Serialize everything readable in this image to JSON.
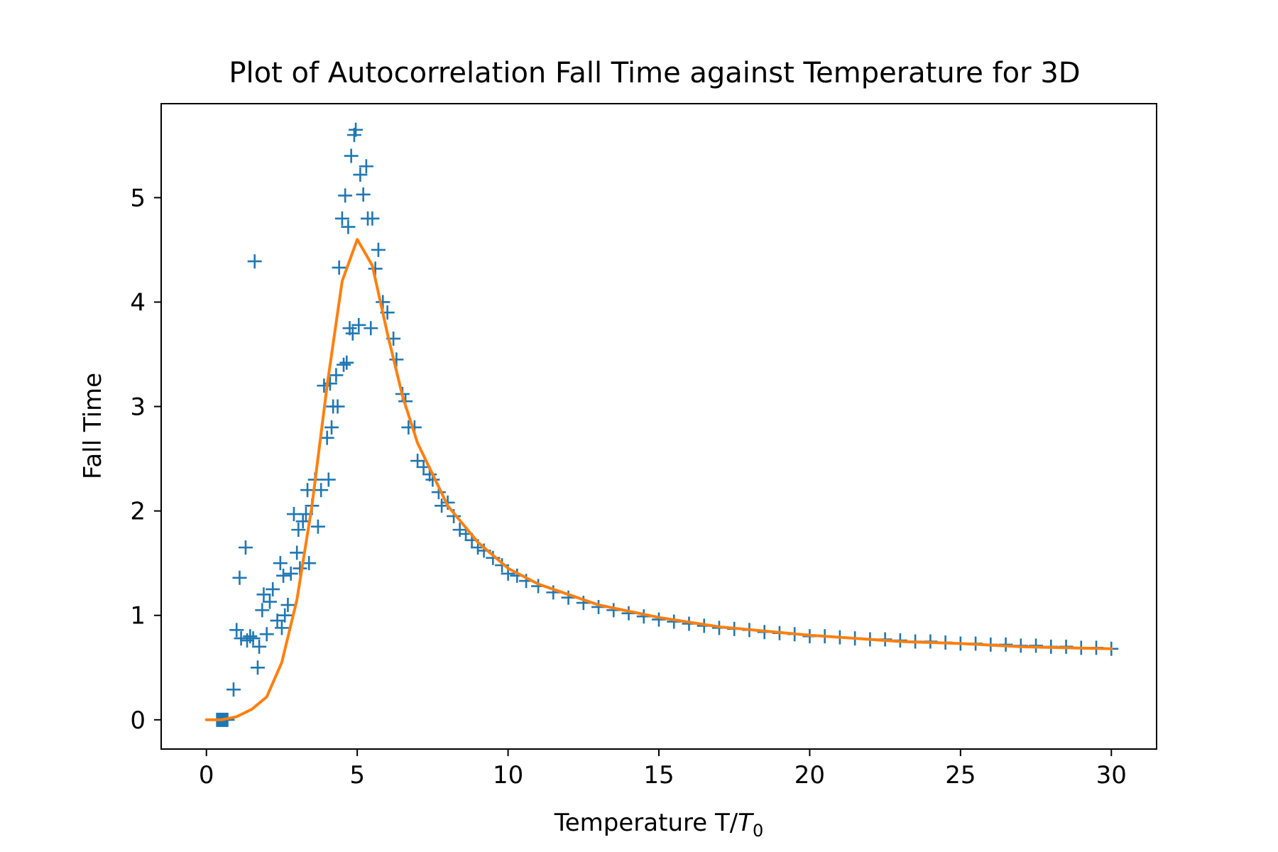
{
  "chart_data": {
    "type": "scatter",
    "title": "Plot of Autocorrelation Fall Time against Temperature for 3D",
    "xlabel": "Temperature T/",
    "xlabel_math": "T",
    "xlabel_math_sub": "0",
    "ylabel": "Fall Time",
    "xlim": [
      -1.5,
      31.5
    ],
    "ylim": [
      -0.28,
      5.9
    ],
    "x_ticks": [
      0,
      5,
      10,
      15,
      20,
      25,
      30
    ],
    "x_tick_labels": [
      "0",
      "5",
      "10",
      "15",
      "20",
      "25",
      "30"
    ],
    "y_ticks": [
      0,
      1,
      2,
      3,
      4,
      5
    ],
    "y_tick_labels": [
      "0",
      "1",
      "2",
      "3",
      "4",
      "5"
    ],
    "grid": false,
    "legend": "none",
    "series": [
      {
        "kind": "scatter",
        "marker": "plus",
        "color": "#1f77b4",
        "points": [
          [
            0.35,
            0.0
          ],
          [
            0.4,
            0.0
          ],
          [
            0.45,
            0.0
          ],
          [
            0.5,
            0.0
          ],
          [
            0.55,
            0.0
          ],
          [
            0.6,
            0.0
          ],
          [
            0.65,
            0.0
          ],
          [
            0.7,
            0.0
          ],
          [
            0.9,
            0.29
          ],
          [
            1.0,
            0.86
          ],
          [
            1.1,
            1.36
          ],
          [
            1.15,
            0.78
          ],
          [
            1.3,
            1.65
          ],
          [
            1.35,
            0.76
          ],
          [
            1.45,
            0.8
          ],
          [
            1.55,
            0.78
          ],
          [
            1.6,
            4.39
          ],
          [
            1.7,
            0.5
          ],
          [
            1.75,
            0.7
          ],
          [
            1.85,
            1.05
          ],
          [
            1.9,
            1.2
          ],
          [
            2.0,
            0.82
          ],
          [
            2.1,
            1.13
          ],
          [
            2.2,
            1.25
          ],
          [
            2.35,
            0.95
          ],
          [
            2.45,
            1.5
          ],
          [
            2.5,
            0.88
          ],
          [
            2.55,
            1.38
          ],
          [
            2.6,
            1.0
          ],
          [
            2.7,
            1.1
          ],
          [
            2.8,
            1.4
          ],
          [
            2.9,
            1.97
          ],
          [
            3.0,
            1.6
          ],
          [
            3.05,
            1.82
          ],
          [
            3.1,
            1.45
          ],
          [
            3.2,
            1.9
          ],
          [
            3.3,
            1.97
          ],
          [
            3.35,
            2.2
          ],
          [
            3.4,
            1.5
          ],
          [
            3.5,
            2.05
          ],
          [
            3.6,
            2.3
          ],
          [
            3.7,
            1.85
          ],
          [
            3.8,
            2.2
          ],
          [
            3.9,
            3.2
          ],
          [
            4.0,
            2.7
          ],
          [
            4.05,
            2.3
          ],
          [
            4.1,
            3.22
          ],
          [
            4.15,
            2.8
          ],
          [
            4.2,
            3.0
          ],
          [
            4.3,
            3.3
          ],
          [
            4.35,
            3.0
          ],
          [
            4.4,
            4.33
          ],
          [
            4.5,
            4.8
          ],
          [
            4.55,
            3.4
          ],
          [
            4.6,
            5.02
          ],
          [
            4.65,
            3.42
          ],
          [
            4.7,
            4.72
          ],
          [
            4.75,
            3.75
          ],
          [
            4.8,
            5.4
          ],
          [
            4.85,
            3.7
          ],
          [
            4.9,
            5.6
          ],
          [
            4.95,
            5.65
          ],
          [
            5.05,
            3.78
          ],
          [
            5.1,
            5.22
          ],
          [
            5.2,
            5.03
          ],
          [
            5.3,
            5.3
          ],
          [
            5.35,
            4.8
          ],
          [
            5.45,
            3.75
          ],
          [
            5.5,
            4.8
          ],
          [
            5.6,
            4.32
          ],
          [
            5.7,
            4.5
          ],
          [
            5.85,
            4.0
          ],
          [
            6.0,
            3.9
          ],
          [
            6.2,
            3.65
          ],
          [
            6.3,
            3.45
          ],
          [
            6.5,
            3.12
          ],
          [
            6.6,
            3.05
          ],
          [
            6.7,
            2.8
          ],
          [
            6.9,
            2.8
          ],
          [
            7.0,
            2.48
          ],
          [
            7.2,
            2.42
          ],
          [
            7.4,
            2.35
          ],
          [
            7.5,
            2.3
          ],
          [
            7.7,
            2.18
          ],
          [
            7.8,
            2.05
          ],
          [
            8.0,
            2.08
          ],
          [
            8.2,
            1.95
          ],
          [
            8.4,
            1.82
          ],
          [
            8.6,
            1.78
          ],
          [
            8.8,
            1.72
          ],
          [
            9.0,
            1.65
          ],
          [
            9.2,
            1.62
          ],
          [
            9.5,
            1.55
          ],
          [
            9.8,
            1.48
          ],
          [
            10.0,
            1.4
          ],
          [
            10.3,
            1.38
          ],
          [
            10.6,
            1.33
          ],
          [
            11.0,
            1.28
          ],
          [
            11.5,
            1.22
          ],
          [
            12.0,
            1.17
          ],
          [
            12.5,
            1.12
          ],
          [
            13.0,
            1.08
          ],
          [
            13.5,
            1.05
          ],
          [
            14.0,
            1.02
          ],
          [
            14.5,
            0.99
          ],
          [
            15.0,
            0.96
          ],
          [
            15.5,
            0.94
          ],
          [
            16.0,
            0.92
          ],
          [
            16.5,
            0.9
          ],
          [
            17.0,
            0.88
          ],
          [
            17.5,
            0.87
          ],
          [
            18.0,
            0.86
          ],
          [
            18.5,
            0.84
          ],
          [
            19.0,
            0.83
          ],
          [
            19.5,
            0.82
          ],
          [
            20.0,
            0.8
          ],
          [
            20.5,
            0.8
          ],
          [
            21.0,
            0.79
          ],
          [
            21.5,
            0.78
          ],
          [
            22.0,
            0.77
          ],
          [
            22.5,
            0.77
          ],
          [
            23.0,
            0.76
          ],
          [
            23.5,
            0.75
          ],
          [
            24.0,
            0.75
          ],
          [
            24.5,
            0.74
          ],
          [
            25.0,
            0.73
          ],
          [
            25.5,
            0.73
          ],
          [
            26.0,
            0.72
          ],
          [
            26.5,
            0.72
          ],
          [
            27.0,
            0.71
          ],
          [
            27.5,
            0.71
          ],
          [
            28.0,
            0.7
          ],
          [
            28.5,
            0.7
          ],
          [
            29.0,
            0.69
          ],
          [
            29.5,
            0.69
          ],
          [
            30.0,
            0.68
          ]
        ]
      },
      {
        "kind": "line",
        "color": "#ff7f0e",
        "points": [
          [
            0.0,
            0.0
          ],
          [
            0.5,
            0.0
          ],
          [
            1.0,
            0.03
          ],
          [
            1.5,
            0.1
          ],
          [
            2.0,
            0.22
          ],
          [
            2.5,
            0.55
          ],
          [
            3.0,
            1.15
          ],
          [
            3.5,
            2.05
          ],
          [
            4.0,
            3.2
          ],
          [
            4.5,
            4.2
          ],
          [
            5.0,
            4.6
          ],
          [
            5.5,
            4.35
          ],
          [
            6.0,
            3.7
          ],
          [
            6.5,
            3.1
          ],
          [
            7.0,
            2.65
          ],
          [
            8.0,
            2.05
          ],
          [
            9.0,
            1.7
          ],
          [
            10.0,
            1.45
          ],
          [
            11.0,
            1.3
          ],
          [
            12.0,
            1.2
          ],
          [
            13.0,
            1.1
          ],
          [
            15.0,
            0.98
          ],
          [
            17.0,
            0.89
          ],
          [
            20.0,
            0.81
          ],
          [
            23.0,
            0.75
          ],
          [
            25.0,
            0.73
          ],
          [
            27.0,
            0.7
          ],
          [
            30.0,
            0.68
          ]
        ]
      }
    ]
  }
}
